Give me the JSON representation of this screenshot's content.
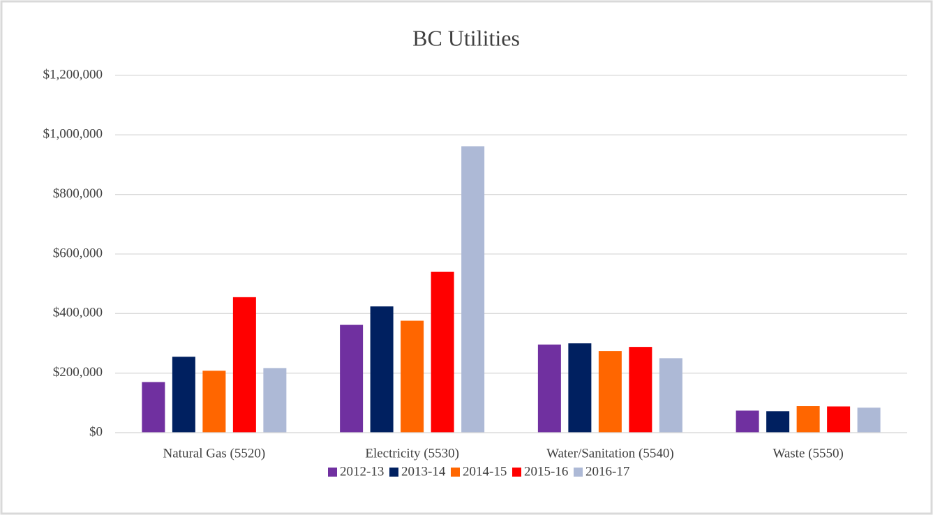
{
  "chart_data": {
    "type": "bar",
    "title": "BC Utilities",
    "categories": [
      "Natural Gas (5520)",
      "Electricity (5530)",
      "Water/Sanitation (5540)",
      "Waste (5550)"
    ],
    "series": [
      {
        "name": "2012-13",
        "color": "#7030a0",
        "values": [
          170000,
          362000,
          296000,
          74000
        ]
      },
      {
        "name": "2013-14",
        "color": "#002060",
        "values": [
          255000,
          424000,
          300000,
          72000
        ]
      },
      {
        "name": "2014-15",
        "color": "#ff6600",
        "values": [
          208000,
          376000,
          274000,
          89000
        ]
      },
      {
        "name": "2015-16",
        "color": "#ff0000",
        "values": [
          455000,
          540000,
          288000,
          88000
        ]
      },
      {
        "name": "2016-17",
        "color": "#adb9d6",
        "values": [
          217000,
          962000,
          250000,
          84000
        ]
      }
    ],
    "ylim": [
      0,
      1200000
    ],
    "yticks": [
      {
        "value": 0,
        "label": "$0"
      },
      {
        "value": 200000,
        "label": "$200,000"
      },
      {
        "value": 400000,
        "label": "$400,000"
      },
      {
        "value": 600000,
        "label": "$600,000"
      },
      {
        "value": 800000,
        "label": "$800,000"
      },
      {
        "value": 1000000,
        "label": "$1,000,000"
      },
      {
        "value": 1200000,
        "label": "$1,200,000"
      }
    ],
    "grid": true,
    "legend": "bottom"
  }
}
